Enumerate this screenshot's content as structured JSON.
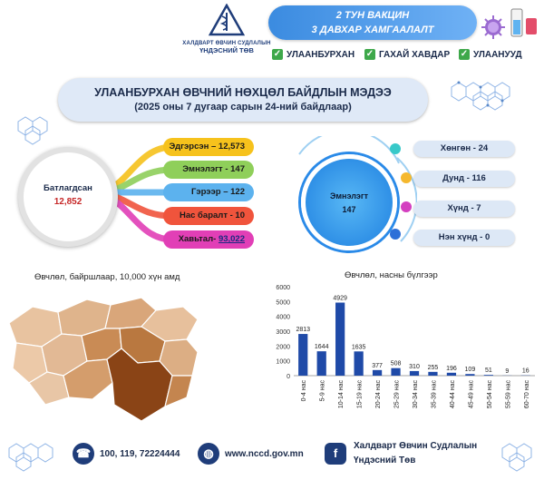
{
  "header": {
    "org_line1": "ХАЛДВАРТ ӨВЧИН СУДЛАЛЫН",
    "org_line2": "ҮНДЭСНИЙ ТӨВ",
    "vaccine_line1": "2 ТУН ВАКЦИН",
    "vaccine_line2": "3 ДАВХАР ХАМГААЛАЛТ",
    "checks": [
      "УЛААНБУРХАН",
      "ГАХАЙ ХАВДАР",
      "УЛААНУУД"
    ]
  },
  "title": {
    "line1": "УЛААНБУРХАН ӨВЧНИЙ НӨХЦӨЛ БАЙДЛЫН МЭДЭЭ",
    "line2": "(2025 оны 7 дугаар сарын 24-ний байдлаар)"
  },
  "confirmed": {
    "label": "Батлагдсан",
    "value": "12,852",
    "items": [
      {
        "label": "Эдгэрсэн – 12,573",
        "color": "#f6c21c"
      },
      {
        "label": "Эмнэлэгт - 147",
        "color": "#8fcf5a"
      },
      {
        "label": "Гэрээр – 122",
        "color": "#5cb2ee"
      },
      {
        "label": "Нас баралт - 10",
        "color": "#f0543c"
      },
      {
        "label_prefix": "Хавьтал- ",
        "label_link": "93,022",
        "color": "#e13fb6"
      }
    ]
  },
  "hospitalized": {
    "label": "Эмнэлэгт",
    "value": "147",
    "severity": [
      {
        "label": "Хөнгөн - 24",
        "color": "#38c9c9"
      },
      {
        "label": "Дунд - 116",
        "color": "#f5b82e"
      },
      {
        "label": "Хүнд - 7",
        "color": "#d43fc0"
      },
      {
        "label": "Нэн хүнд - 0",
        "color": "#2d6fd8"
      }
    ]
  },
  "map": {
    "title": "Өвчлөл, байршлаар, 10,000 хүн амд"
  },
  "chart_data": {
    "type": "bar",
    "title": "Өвчлөл, насны бүлгээр",
    "categories": [
      "0-4 нас",
      "5-9 нас",
      "10-14 нас",
      "15-19 нас",
      "20-24 нас",
      "25-29 нас",
      "30-34 нас",
      "35-39 нас",
      "40-44 нас",
      "45-49 нас",
      "50-54 нас",
      "55-59 нас",
      "60-70 нас"
    ],
    "values": [
      2813,
      1644,
      4929,
      1635,
      377,
      508,
      310,
      255,
      196,
      109,
      51,
      9,
      16
    ],
    "yticks": [
      "0",
      "1000",
      "2000",
      "3000",
      "4000",
      "5000",
      "6000"
    ],
    "ylim": [
      0,
      6000
    ],
    "bar_color": "#1f4aa8",
    "grid": false
  },
  "footer": {
    "phone": "100, 119, 72224444",
    "website": "www.nccd.gov.mn",
    "org_line1": "Халдварт Өвчин Судлалын",
    "org_line2": "Үндэсний Төв",
    "phone_icon": "phone-icon",
    "web_icon": "globe-icon",
    "fb_icon": "facebook-icon"
  }
}
